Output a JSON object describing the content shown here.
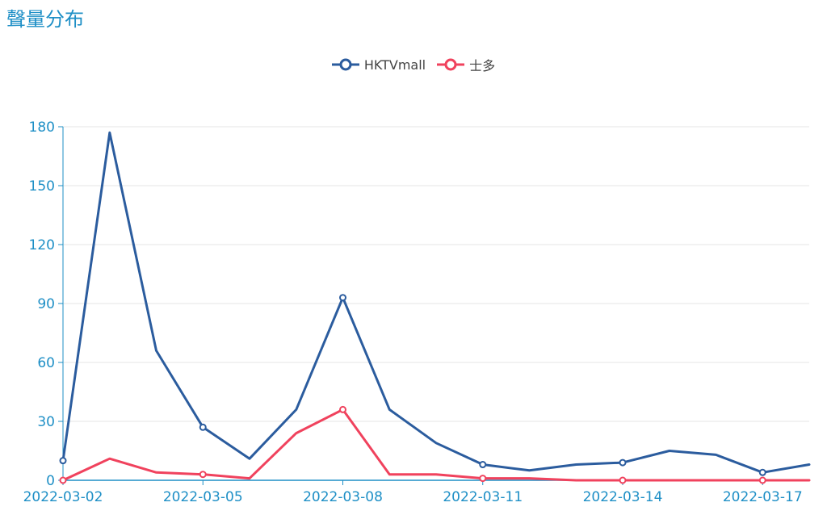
{
  "header": {
    "title": "聲量分布"
  },
  "colors": {
    "title": "#1e8fc6",
    "axis": "#1e8fc6",
    "grid": "#e6e6e6"
  },
  "chart_data": {
    "type": "line",
    "title": "聲量分布",
    "x": [
      "2022-03-02",
      "2022-03-03",
      "2022-03-04",
      "2022-03-05",
      "2022-03-06",
      "2022-03-07",
      "2022-03-08",
      "2022-03-09",
      "2022-03-10",
      "2022-03-11",
      "2022-03-12",
      "2022-03-13",
      "2022-03-14",
      "2022-03-15",
      "2022-03-16",
      "2022-03-17",
      "2022-03-18"
    ],
    "x_tick_labels": [
      "2022-03-02",
      "2022-03-05",
      "2022-03-08",
      "2022-03-11",
      "2022-03-14",
      "2022-03-17"
    ],
    "y_ticks": [
      0,
      30,
      60,
      90,
      120,
      150,
      180
    ],
    "ylim": [
      0,
      180
    ],
    "grid": true,
    "legend_position": "top-center",
    "series": [
      {
        "name": "HKTVmall",
        "color": "#2b5c9e",
        "values": [
          10,
          177,
          66,
          27,
          11,
          36,
          93,
          36,
          19,
          8,
          5,
          8,
          9,
          15,
          13,
          4,
          8
        ]
      },
      {
        "name": "士多",
        "color": "#f0425d",
        "values": [
          0,
          11,
          4,
          3,
          1,
          24,
          36,
          3,
          3,
          1,
          1,
          0,
          0,
          0,
          0,
          0,
          0
        ]
      }
    ]
  }
}
